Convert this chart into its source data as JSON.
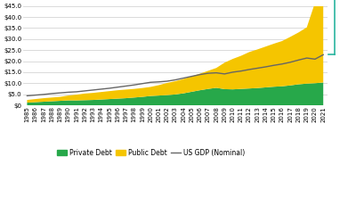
{
  "years": [
    1985,
    1986,
    1987,
    1988,
    1989,
    1990,
    1991,
    1992,
    1993,
    1994,
    1995,
    1996,
    1997,
    1998,
    1999,
    2000,
    2001,
    2002,
    2003,
    2004,
    2005,
    2006,
    2007,
    2008,
    2009,
    2010,
    2011,
    2012,
    2013,
    2014,
    2015,
    2016,
    2017,
    2018,
    2019,
    2020,
    2021
  ],
  "private_debt": [
    1.2,
    1.4,
    1.6,
    1.8,
    2.0,
    2.2,
    2.2,
    2.3,
    2.4,
    2.6,
    2.8,
    3.0,
    3.2,
    3.5,
    3.8,
    4.2,
    4.4,
    4.6,
    4.9,
    5.4,
    6.1,
    6.8,
    7.4,
    7.9,
    7.3,
    7.2,
    7.4,
    7.6,
    7.8,
    8.1,
    8.4,
    8.6,
    9.0,
    9.5,
    9.8,
    10.0,
    10.3
  ],
  "public_debt": [
    1.2,
    1.4,
    1.6,
    1.7,
    1.8,
    2.2,
    2.6,
    3.0,
    3.2,
    3.4,
    3.6,
    3.8,
    3.9,
    3.9,
    4.0,
    4.1,
    4.7,
    5.5,
    6.0,
    6.5,
    7.0,
    7.5,
    8.2,
    9.0,
    12.0,
    13.8,
    15.0,
    16.5,
    17.5,
    18.5,
    19.5,
    20.5,
    22.0,
    23.5,
    25.5,
    36.5,
    38.0
  ],
  "gdp": [
    4.3,
    4.6,
    4.9,
    5.3,
    5.6,
    5.9,
    6.1,
    6.5,
    6.9,
    7.3,
    7.7,
    8.2,
    8.7,
    9.2,
    9.8,
    10.4,
    10.6,
    10.9,
    11.5,
    12.3,
    13.1,
    13.9,
    14.5,
    14.7,
    14.2,
    15.0,
    15.5,
    16.2,
    16.8,
    17.4,
    18.1,
    18.7,
    19.5,
    20.5,
    21.4,
    20.9,
    22.9
  ],
  "private_color": "#27a84a",
  "public_color": "#f5c500",
  "gdp_color": "#666666",
  "bracket_color": "#2ab5a0",
  "ylim": [
    0,
    45
  ],
  "yticks": [
    0,
    5,
    10,
    15,
    20,
    25,
    30,
    35,
    40,
    45
  ],
  "ytick_labels": [
    "$0",
    "$5.0",
    "$10.0",
    "$15.0",
    "$20.0",
    "$25.0",
    "$30.0",
    "$35.0",
    "$40.0",
    "$45.0"
  ],
  "background_color": "#ffffff",
  "legend_labels": [
    "Private Debt",
    "Public Debt",
    "US GDP (Nominal)"
  ],
  "tick_fontsize": 5,
  "legend_fontsize": 5.5
}
